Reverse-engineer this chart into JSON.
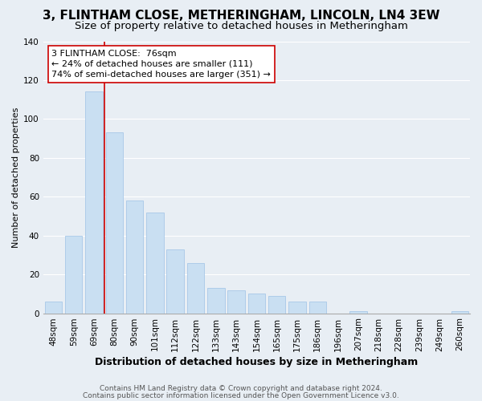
{
  "title": "3, FLINTHAM CLOSE, METHERINGHAM, LINCOLN, LN4 3EW",
  "subtitle": "Size of property relative to detached houses in Metheringham",
  "xlabel": "Distribution of detached houses by size in Metheringham",
  "ylabel": "Number of detached properties",
  "bar_labels": [
    "48sqm",
    "59sqm",
    "69sqm",
    "80sqm",
    "90sqm",
    "101sqm",
    "112sqm",
    "122sqm",
    "133sqm",
    "143sqm",
    "154sqm",
    "165sqm",
    "175sqm",
    "186sqm",
    "196sqm",
    "207sqm",
    "218sqm",
    "228sqm",
    "239sqm",
    "249sqm",
    "260sqm"
  ],
  "bar_values": [
    6,
    40,
    114,
    93,
    58,
    52,
    33,
    26,
    13,
    12,
    10,
    9,
    6,
    6,
    0,
    1,
    0,
    0,
    0,
    0,
    1
  ],
  "bar_color": "#c9dff2",
  "bar_edge_color": "#a8c8e8",
  "highlight_line_color": "#cc0000",
  "ylim": [
    0,
    140
  ],
  "yticks": [
    0,
    20,
    40,
    60,
    80,
    100,
    120,
    140
  ],
  "annotation_title": "3 FLINTHAM CLOSE:  76sqm",
  "annotation_line1": "← 24% of detached houses are smaller (111)",
  "annotation_line2": "74% of semi-detached houses are larger (351) →",
  "annotation_box_color": "#ffffff",
  "annotation_border_color": "#cc0000",
  "footer_line1": "Contains HM Land Registry data © Crown copyright and database right 2024.",
  "footer_line2": "Contains public sector information licensed under the Open Government Licence v3.0.",
  "background_color": "#e8eef4",
  "plot_bg_color": "#e8eef4",
  "grid_color": "#ffffff",
  "title_fontsize": 11,
  "subtitle_fontsize": 9.5,
  "xlabel_fontsize": 9,
  "ylabel_fontsize": 8,
  "tick_fontsize": 7.5,
  "footer_fontsize": 6.5,
  "annotation_fontsize": 8
}
